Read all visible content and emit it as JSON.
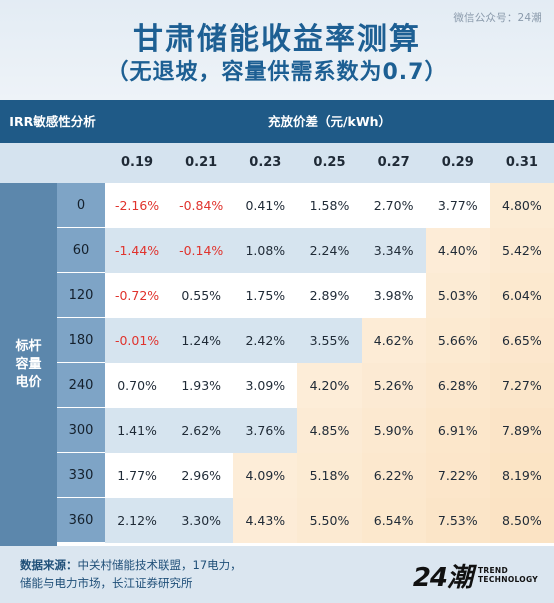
{
  "header": {
    "title": "甘肃储能收益率测算",
    "subtitle": "（无退坡，容量供需系数为0.7）",
    "watermark": "微信公众号：24潮"
  },
  "colors": {
    "header_bar": "#1f5a87",
    "negative_text": "#e0332d",
    "scale_low": "#ffffff",
    "scale_mid": "#fbe3c4",
    "band": "#d6e4ef"
  },
  "chart_data": {
    "type": "table",
    "corner_label": "IRR敏感性分析",
    "xlabel": "充放价差（元/kWh）",
    "ylabel": "标杆\n容量\n电价",
    "columns": [
      "0.19",
      "0.21",
      "0.23",
      "0.25",
      "0.27",
      "0.29",
      "0.31"
    ],
    "rows": [
      "0",
      "60",
      "120",
      "180",
      "240",
      "300",
      "330",
      "360"
    ],
    "values": [
      [
        "-2.16%",
        "-0.84%",
        "0.41%",
        "1.58%",
        "2.70%",
        "3.77%",
        "4.80%"
      ],
      [
        "-1.44%",
        "-0.14%",
        "1.08%",
        "2.24%",
        "3.34%",
        "4.40%",
        "5.42%"
      ],
      [
        "-0.72%",
        "0.55%",
        "1.75%",
        "2.89%",
        "3.98%",
        "5.03%",
        "6.04%"
      ],
      [
        "-0.01%",
        "1.24%",
        "2.42%",
        "3.55%",
        "4.62%",
        "5.66%",
        "6.65%"
      ],
      [
        "0.70%",
        "1.93%",
        "3.09%",
        "4.20%",
        "5.26%",
        "6.28%",
        "7.27%"
      ],
      [
        "1.41%",
        "2.62%",
        "3.76%",
        "4.85%",
        "5.90%",
        "6.91%",
        "7.89%"
      ],
      [
        "1.77%",
        "2.96%",
        "4.09%",
        "5.18%",
        "6.22%",
        "7.22%",
        "8.19%"
      ],
      [
        "2.12%",
        "3.30%",
        "4.43%",
        "5.50%",
        "6.54%",
        "7.53%",
        "8.50%"
      ]
    ]
  },
  "footer": {
    "source_label": "数据来源：",
    "source_line1": "中关村储能技术联盟，17电力，",
    "source_line2": "储能与电力市场，长江证券研究所",
    "logo_mark": "24潮",
    "logo_line1": "TREND",
    "logo_line2": "TECHNOLOGY"
  }
}
